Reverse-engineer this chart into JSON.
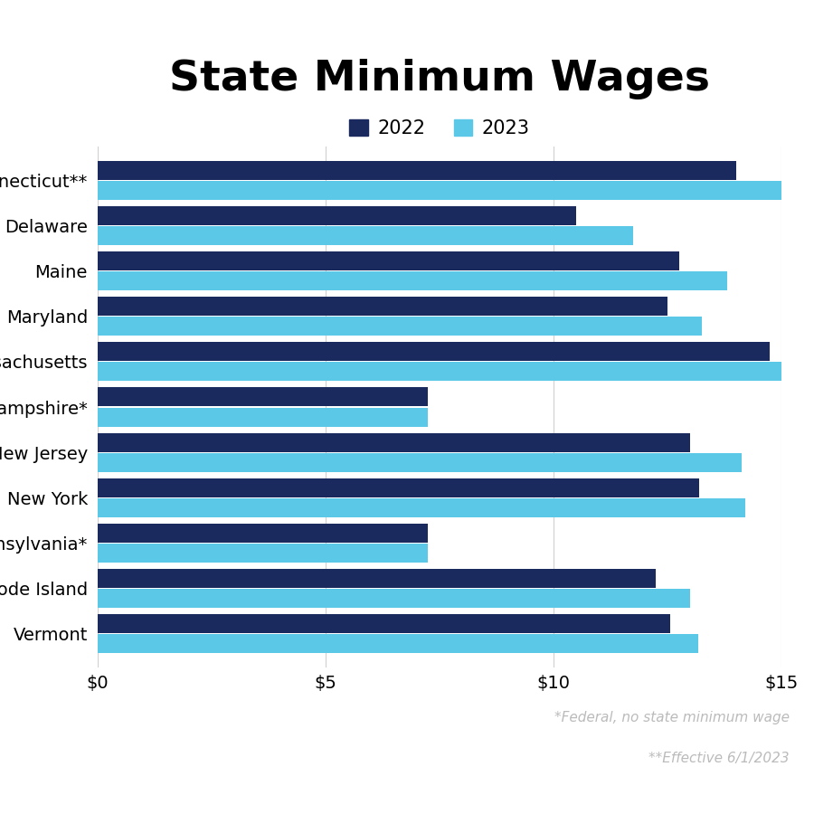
{
  "title": "State Minimum Wages",
  "states": [
    "Connecticut**",
    "Delaware",
    "Maine",
    "Maryland",
    "Massachusetts",
    "New Hampshire*",
    "New Jersey",
    "New York",
    "Pennsylvania*",
    "Rhode Island",
    "Vermont"
  ],
  "wages_2022": [
    14.0,
    10.5,
    12.75,
    12.5,
    14.75,
    7.25,
    13.0,
    13.2,
    7.25,
    12.25,
    12.55
  ],
  "wages_2023": [
    15.0,
    11.75,
    13.8,
    13.25,
    15.0,
    7.25,
    14.13,
    14.2,
    7.25,
    13.0,
    13.18
  ],
  "color_2022": "#1a2a5e",
  "color_2023": "#5bc8e8",
  "footnote1": "*Federal, no state minimum wage",
  "footnote2": "**Effective 6/1/2023",
  "legend_labels": [
    "2022",
    "2023"
  ],
  "xlim": [
    0,
    15
  ],
  "xticks": [
    0,
    5,
    10,
    15
  ],
  "xtick_labels": [
    "$0",
    "$5",
    "$10",
    "$15"
  ],
  "background_color": "#ffffff",
  "title_fontsize": 34,
  "bar_height": 0.42,
  "footnote_color": "#bbbbbb",
  "label_fontsize": 14,
  "xtick_fontsize": 14
}
